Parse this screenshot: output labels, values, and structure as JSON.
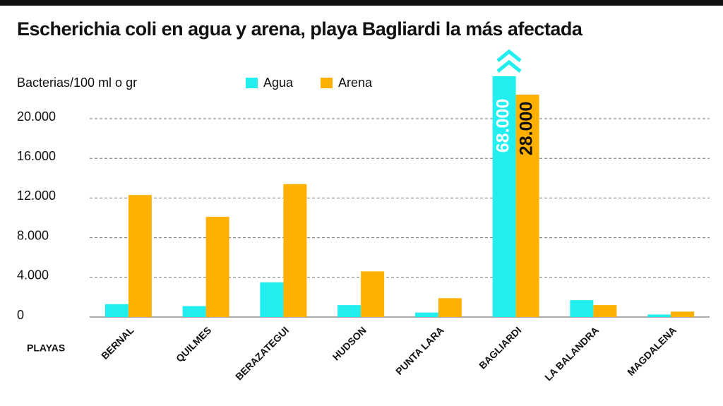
{
  "chart_data": {
    "type": "bar",
    "title": "Escherichia coli en agua y arena, playa Bagliardi la más afectada",
    "y_label": "Bacterias/100 ml o gr",
    "x_label": "PLAYAS",
    "categories": [
      "BERNAL",
      "QUILMES",
      "BERAZATEGUI",
      "HUDSON",
      "PUNTA LARA",
      "BAGLIARDI",
      "LA BALANDRA",
      "MAGDALENA"
    ],
    "series": [
      {
        "name": "Agua",
        "color": "#22eef0",
        "values": [
          1300,
          1100,
          3500,
          1200,
          450,
          68000,
          1700,
          250
        ],
        "value_labels": [
          null,
          null,
          null,
          null,
          null,
          "68.000",
          null,
          null
        ]
      },
      {
        "name": "Arena",
        "color": "#ffb000",
        "values": [
          12300,
          10100,
          13400,
          4600,
          1900,
          28000,
          1200,
          550
        ],
        "value_labels": [
          null,
          null,
          null,
          null,
          null,
          "28.000",
          null,
          null
        ]
      }
    ],
    "ylim": [
      0,
      20000
    ],
    "yticks": [
      0,
      {
        "value": 4000,
        "label": "4.000"
      },
      {
        "value": 8000,
        "label": "8.000"
      },
      {
        "value": 12000,
        "label": "12.000"
      },
      {
        "value": 16000,
        "label": "16.000"
      },
      {
        "value": 20000,
        "label": "20.000"
      }
    ],
    "grid": true
  }
}
